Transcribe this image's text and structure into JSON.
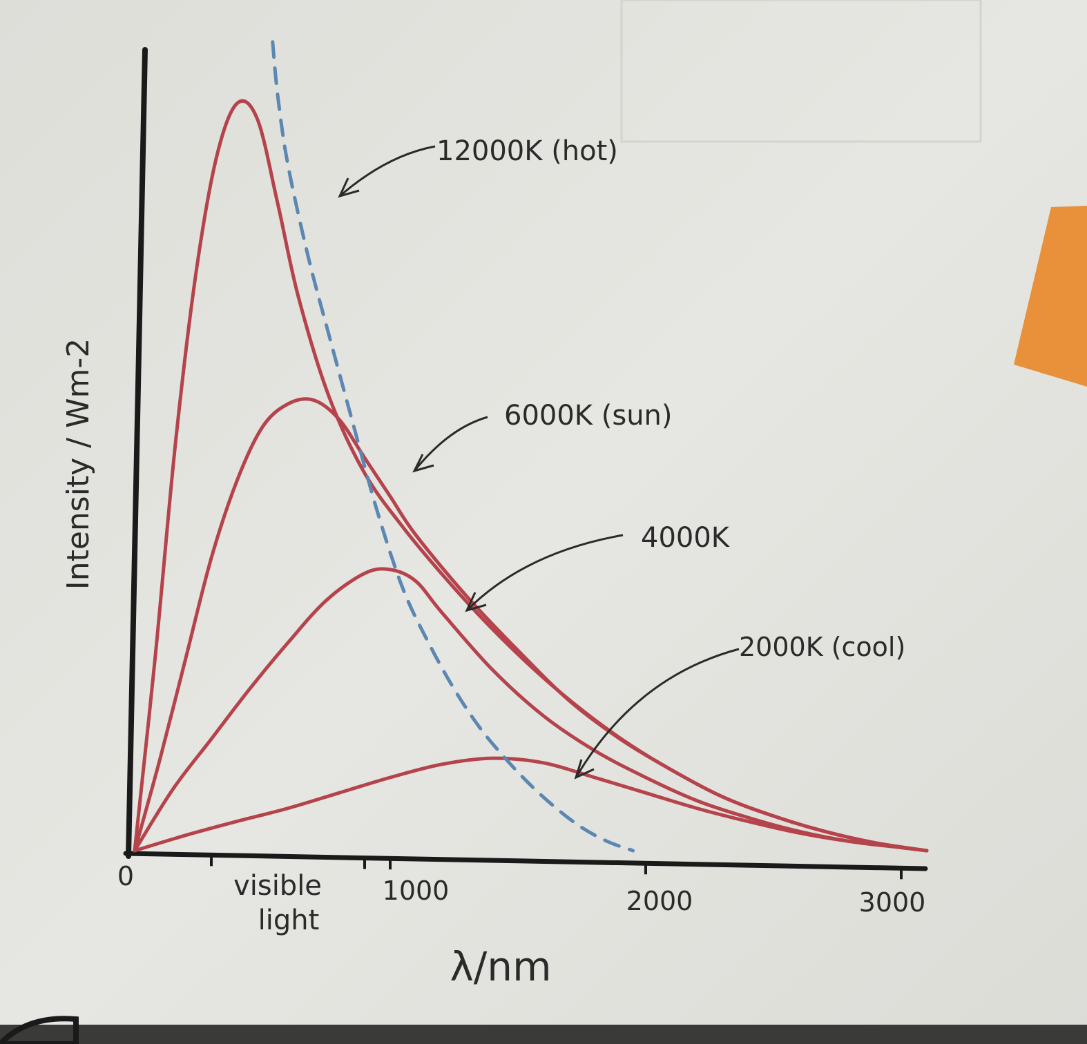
{
  "chart_data": {
    "type": "line",
    "title": "",
    "xlabel": "λ/nm",
    "ylabel": "Intensity / Wm-2",
    "xlim": [
      0,
      3100
    ],
    "ylim": [
      0,
      100
    ],
    "x_ticks": [
      {
        "value": 0,
        "label": "0"
      },
      {
        "value": 1000,
        "label": "1000"
      },
      {
        "value": 2000,
        "label": "2000"
      },
      {
        "value": 3000,
        "label": "3000"
      }
    ],
    "band_label": {
      "line1": "visible",
      "line2": "light",
      "from": 300,
      "to": 900
    },
    "grid": false,
    "legend": "none",
    "series": [
      {
        "name": "12000K (hot)",
        "color": "#b5434b",
        "x": [
          0,
          80,
          160,
          240,
          320,
          400,
          480,
          560,
          640,
          760,
          900,
          1050,
          1200,
          1350,
          1500,
          1650,
          1800,
          1950,
          2100,
          2300,
          2500,
          2700,
          2900,
          3100
        ],
        "y": [
          0,
          25,
          53,
          75,
          90,
          97,
          95,
          84,
          72,
          59,
          49,
          42,
          36,
          30.5,
          25.5,
          21,
          17,
          13.5,
          10.5,
          7,
          4.5,
          2.5,
          1,
          0
        ]
      },
      {
        "name": "6000K (sun)",
        "color": "#b5434b",
        "x": [
          0,
          100,
          200,
          300,
          400,
          500,
          600,
          700,
          800,
          900,
          1000,
          1100,
          1300,
          1500,
          1700,
          1900,
          2100,
          2300,
          2500,
          2700,
          2900,
          3100
        ],
        "y": [
          0,
          12,
          25,
          38,
          48,
          55,
          58,
          58.5,
          56,
          51,
          46,
          41,
          33,
          26,
          19.5,
          14.5,
          10.5,
          7,
          4.5,
          2.5,
          1,
          0
        ]
      },
      {
        "name": "4000K",
        "color": "#b5434b",
        "x": [
          0,
          150,
          300,
          450,
          600,
          750,
          900,
          1000,
          1100,
          1200,
          1400,
          1600,
          1800,
          2000,
          2200,
          2400,
          2600,
          2800,
          3000,
          3100
        ],
        "y": [
          0,
          8,
          14.5,
          21,
          27,
          32.5,
          36,
          36.5,
          35,
          31,
          23.5,
          17.5,
          13,
          9.5,
          6.5,
          4.3,
          2.5,
          1.2,
          0.4,
          0
        ]
      },
      {
        "name": "2000K (cool)",
        "color": "#b5434b",
        "x": [
          0,
          200,
          400,
          600,
          800,
          1000,
          1200,
          1400,
          1600,
          1800,
          2000,
          2200,
          2400,
          2600,
          2800,
          3000,
          3100
        ],
        "y": [
          0,
          2,
          3.8,
          5.5,
          7.5,
          9.5,
          11.2,
          12,
          11.4,
          9.5,
          7.5,
          5.5,
          3.8,
          2.3,
          1.2,
          0.4,
          0
        ]
      },
      {
        "name": "",
        "style": "dashed",
        "color": "#5b87b3",
        "x": [
          540,
          560,
          600,
          680,
          760,
          850,
          950,
          1050,
          1150,
          1250,
          1350,
          1450,
          1550,
          1650,
          1750,
          1850,
          1950
        ],
        "y": [
          105,
          98,
          89,
          77,
          67,
          56,
          44,
          34,
          27,
          21,
          16,
          12,
          8.5,
          5.5,
          3,
          1.2,
          0
        ]
      }
    ],
    "annotations": [
      {
        "text": "12000K (hot)",
        "series": "12000K (hot)"
      },
      {
        "text": "6000K (sun)",
        "series": "6000K (sun)"
      },
      {
        "text": "4000K",
        "series": "4000K"
      },
      {
        "text": "2000K (cool)",
        "series": "2000K (cool)"
      }
    ]
  },
  "colors": {
    "paper": "#e3e3df",
    "axis": "#1a1a1a",
    "curve": "#b5434b",
    "peak_line": "#5b87b3",
    "sticky_note": "#e8903a",
    "ink": "#2a2a2a"
  }
}
